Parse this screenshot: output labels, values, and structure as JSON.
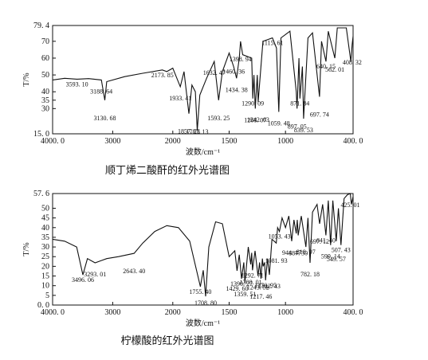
{
  "chart_data": [
    {
      "type": "line",
      "title": "顺丁烯二酸酐的红外光谱图",
      "x_label": "波数/cm⁻¹",
      "y_label": "T/%",
      "xlim": [
        4000,
        400
      ],
      "x_scale_break": 2000,
      "xticks": [
        {
          "value": 4000,
          "label": "4000. 0"
        },
        3000,
        2000,
        1500,
        1000,
        {
          "value": 400,
          "label": "400. 0"
        }
      ],
      "ylim": [
        15,
        79.4
      ],
      "yticks": [
        {
          "value": 15,
          "label": "15. 0"
        },
        30,
        35,
        40,
        50,
        60,
        70,
        {
          "value": 79.4,
          "label": "79. 4"
        }
      ],
      "color": "#111111",
      "x": [
        4000,
        3800,
        3593.1,
        3400,
        3188.64,
        3130.68,
        3100,
        2800,
        2500,
        2173.85,
        2100,
        2000,
        1933.41,
        1900,
        1857.23,
        1830,
        1800,
        1783.13,
        1760,
        1700,
        1632.47,
        1593.25,
        1560,
        1500,
        1460.36,
        1434.38,
        1410,
        1398.94,
        1380,
        1300,
        1290.09,
        1280,
        1268.07,
        1250,
        1242.63,
        1200,
        1115.61,
        1080,
        1059.48,
        1040,
        960,
        904,
        897.05,
        880,
        871.84,
        850,
        839.53,
        800,
        760,
        697.74,
        680,
        640.15,
        620,
        562.01,
        540,
        460,
        420,
        408.32,
        400
      ],
      "values": [
        47,
        48,
        47.5,
        47.8,
        47,
        35,
        46,
        49,
        51,
        53,
        52,
        54,
        43,
        52,
        27,
        44,
        40,
        17,
        38,
        48,
        58,
        35,
        52,
        63,
        55,
        48,
        60,
        70,
        62,
        60,
        36,
        50,
        30,
        50,
        34,
        70,
        72,
        66,
        28,
        72,
        76,
        40,
        30,
        60,
        36,
        55,
        24,
        72,
        75,
        37,
        70,
        58,
        76,
        60,
        78,
        78,
        58,
        68,
        73
      ],
      "annotations": [
        {
          "x": 3593.1,
          "label": "3593. 10"
        },
        {
          "x": 3188.64,
          "label": "3188. 64"
        },
        {
          "x": 3130.68,
          "label": "3130. 68"
        },
        {
          "x": 2173.85,
          "label": "2173. 85"
        },
        {
          "x": 1933.41,
          "label": "1933. 41"
        },
        {
          "x": 1857.23,
          "label": "1857. 23"
        },
        {
          "x": 1783.13,
          "label": "1783. 13"
        },
        {
          "x": 1632.47,
          "label": "1632. 47"
        },
        {
          "x": 1593.25,
          "label": "1593. 25"
        },
        {
          "x": 1460.36,
          "label": "1460. 36"
        },
        {
          "x": 1434.38,
          "label": "1434. 38"
        },
        {
          "x": 1398.94,
          "label": "1398. 94"
        },
        {
          "x": 1290.09,
          "label": "1290. 09"
        },
        {
          "x": 1268.07,
          "label": "1268. 07"
        },
        {
          "x": 1242.63,
          "label": "1242. 63"
        },
        {
          "x": 1115.61,
          "label": "1115. 61"
        },
        {
          "x": 1059.48,
          "label": "1059. 48"
        },
        {
          "x": 897.05,
          "label": "897. 05"
        },
        {
          "x": 871.84,
          "label": "871. 84"
        },
        {
          "x": 839.53,
          "label": "839. 53"
        },
        {
          "x": 697.74,
          "label": "697. 74"
        },
        {
          "x": 640.15,
          "label": "640. 15"
        },
        {
          "x": 562.01,
          "label": "562. 01"
        },
        {
          "x": 408.32,
          "label": "408. 32"
        }
      ]
    },
    {
      "type": "line",
      "title": "柠檬酸的红外光谱图",
      "x_label": "波数/cm⁻¹",
      "y_label": "T/%",
      "xlim": [
        4000,
        400
      ],
      "x_scale_break": 2000,
      "xticks": [
        {
          "value": 4000,
          "label": "4000. 0"
        },
        3000,
        2000,
        1500,
        1000,
        {
          "value": 400,
          "label": "400. 0"
        }
      ],
      "ylim": [
        0,
        57.6
      ],
      "yticks": [
        {
          "value": 0,
          "label": "0. 0"
        },
        5,
        10,
        15,
        20,
        25,
        30,
        35,
        40,
        45,
        50,
        {
          "value": 57.6,
          "label": "57. 6"
        }
      ],
      "color": "#111111",
      "x": [
        4000,
        3800,
        3600,
        3496.06,
        3420,
        3293.01,
        3100,
        2900,
        2643.4,
        2500,
        2300,
        2100,
        1950,
        1850,
        1755.4,
        1730,
        1708.8,
        1680,
        1620,
        1560,
        1500,
        1450,
        1429.6,
        1410,
        1390.27,
        1370,
        1359.51,
        1330,
        1308.01,
        1300,
        1292.71,
        1270,
        1243.52,
        1230,
        1217.46,
        1205,
        1198.05,
        1185,
        1176.95,
        1160,
        1142.43,
        1120,
        1081.93,
        1070,
        1053.43,
        1030,
        1000,
        970,
        944.47,
        925,
        904.24,
        895,
        887.3,
        860,
        818.97,
        800,
        782.18,
        760,
        720,
        697.12,
        670,
        641.4,
        620,
        599.14,
        580,
        549.57,
        530,
        507.43,
        480,
        450,
        425.01,
        415,
        400
      ],
      "values": [
        34,
        33,
        30,
        15.6,
        24,
        21.8,
        24,
        25,
        26.7,
        32,
        38,
        41,
        40,
        33,
        9.5,
        18,
        4.5,
        30,
        43,
        42,
        25,
        28,
        17.7,
        26,
        13.6,
        22,
        11.5,
        30,
        21,
        27,
        18,
        28,
        15,
        22,
        13.6,
        24,
        20,
        22,
        12.8,
        24,
        15.6,
        34,
        32,
        40,
        38,
        45,
        40,
        46,
        33,
        44,
        37,
        44,
        36,
        46,
        30,
        45,
        21.8,
        48,
        52,
        42,
        52,
        36,
        54,
        31,
        54,
        33,
        50,
        31,
        55,
        57,
        57.6,
        52,
        56
      ],
      "annotations": [
        {
          "x": 3496.06,
          "label": "3496. 06"
        },
        {
          "x": 3293.01,
          "label": "3293. 01"
        },
        {
          "x": 2643.4,
          "label": "2643. 40"
        },
        {
          "x": 1755.4,
          "label": "1755. 40"
        },
        {
          "x": 1708.8,
          "label": "1708. 80"
        },
        {
          "x": 1429.6,
          "label": "1429. 60"
        },
        {
          "x": 1390.27,
          "label": "1390. 27"
        },
        {
          "x": 1359.51,
          "label": "1359. 51"
        },
        {
          "x": 1308.01,
          "label": "1308. 01"
        },
        {
          "x": 1292.71,
          "label": "1292. 71"
        },
        {
          "x": 1243.52,
          "label": "1243. 52"
        },
        {
          "x": 1217.46,
          "label": "1217. 46"
        },
        {
          "x": 1176.95,
          "label": "1176. 95"
        },
        {
          "x": 1142.43,
          "label": "1142. 43"
        },
        {
          "x": 1081.93,
          "label": "1081. 93"
        },
        {
          "x": 1053.43,
          "label": "1053. 43"
        },
        {
          "x": 944.47,
          "label": "944. 47"
        },
        {
          "x": 887.3,
          "label": "887. 30"
        },
        {
          "x": 818.97,
          "label": "818. 97"
        },
        {
          "x": 782.18,
          "label": "782. 18"
        },
        {
          "x": 697.12,
          "label": "697. 12"
        },
        {
          "x": 641.4,
          "label": "641. 40"
        },
        {
          "x": 599.14,
          "label": "599. 14"
        },
        {
          "x": 549.57,
          "label": "549. 57"
        },
        {
          "x": 507.43,
          "label": "507. 43"
        },
        {
          "x": 425.01,
          "label": "425. 01"
        }
      ]
    }
  ]
}
